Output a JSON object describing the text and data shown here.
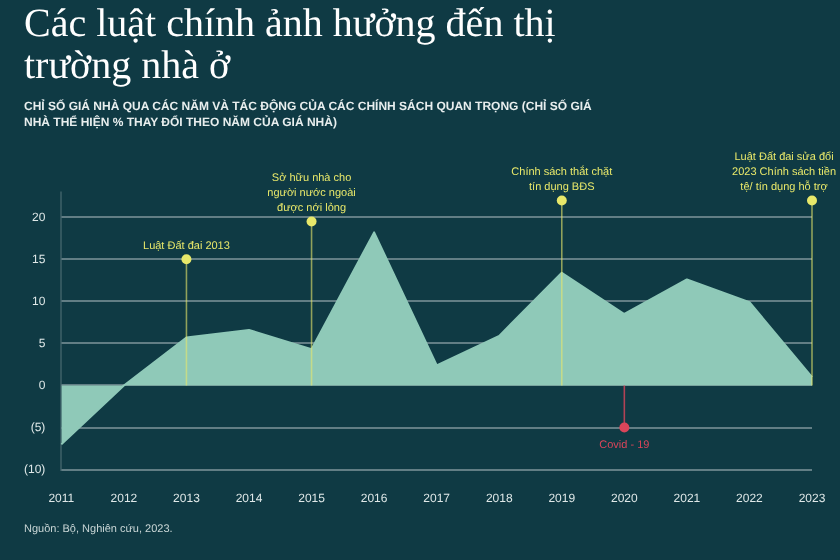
{
  "chart_data": {
    "type": "area",
    "title": "Các luật chính ảnh hưởng đến thị trường nhà ở",
    "subtitle": "CHỈ SỐ GIÁ NHÀ QUA CÁC NĂM VÀ TÁC ĐỘNG CỦA CÁC CHÍNH SÁCH QUAN TRỌNG (CHỈ SỐ GIÁ NHÀ THỂ HIỆN % THAY ĐỔI THEO NĂM CỦA GIÁ NHÀ)",
    "categories": [
      "2011",
      "2012",
      "2013",
      "2014",
      "2015",
      "2016",
      "2017",
      "2018",
      "2019",
      "2020",
      "2021",
      "2022",
      "2023"
    ],
    "series": [
      {
        "color": "#8fc9b8",
        "values": [
          -7,
          0,
          5.7,
          6.6,
          4.3,
          18.2,
          2.4,
          5.9,
          13.4,
          8.5,
          12.6,
          9.9,
          1
        ]
      }
    ],
    "ylim": [
      -10,
      23
    ],
    "yticks": [
      {
        "value": -10,
        "label": "(10)"
      },
      {
        "value": -5,
        "label": "(5)"
      },
      0,
      5,
      10,
      15,
      20
    ],
    "grid": "y",
    "marker": "none",
    "annotations": [
      {
        "text": "Luật Đất đai 2013",
        "x": "2013",
        "y": 15
      },
      {
        "text": "Sở hữu nhà cho người nước ngoài được nới lỏng",
        "x": "2015",
        "y": 19.5
      },
      {
        "text": "Chính sách thắt chặt tín dụng BĐS",
        "x": "2019",
        "y": 22
      },
      {
        "text": "Covid - 19",
        "x": "2020",
        "y": -5
      },
      {
        "text": "Luật Đất đai sửa đổi 2023 Chính sách tiền tệ/ tín dụng hỗ trợ",
        "x": "2023",
        "y": 22
      },
      "Nguồn: Bộ, Nghiên cứu, 2023."
    ]
  }
}
